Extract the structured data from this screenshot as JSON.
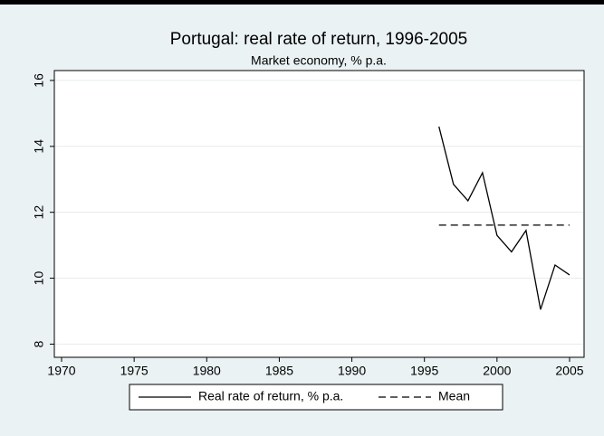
{
  "chart_data": {
    "type": "line",
    "title": "Portugal: real rate of return, 1996-2005",
    "subtitle": "Market economy, % p.a.",
    "x": [
      1996,
      1997,
      1998,
      1999,
      2000,
      2001,
      2002,
      2003,
      2004,
      2005
    ],
    "series": [
      {
        "name": "Real rate of return, % p.a.",
        "color": "#000000",
        "dash": false,
        "values": [
          14.6,
          12.85,
          12.35,
          13.2,
          11.3,
          10.8,
          11.45,
          9.05,
          10.4,
          10.1
        ]
      },
      {
        "name": "Mean",
        "color": "#000000",
        "dash": true,
        "values": [
          11.61,
          11.61,
          11.61,
          11.61,
          11.61,
          11.61,
          11.61,
          11.61,
          11.61,
          11.61
        ]
      }
    ],
    "xlim": [
      1969.5,
      2006
    ],
    "xticks": [
      1970,
      1975,
      1980,
      1985,
      1990,
      1995,
      2000,
      2005
    ],
    "ylim": [
      7.6,
      16.3
    ],
    "yticks": [
      8,
      10,
      12,
      14,
      16
    ],
    "grid": true,
    "legend": "bottom"
  }
}
